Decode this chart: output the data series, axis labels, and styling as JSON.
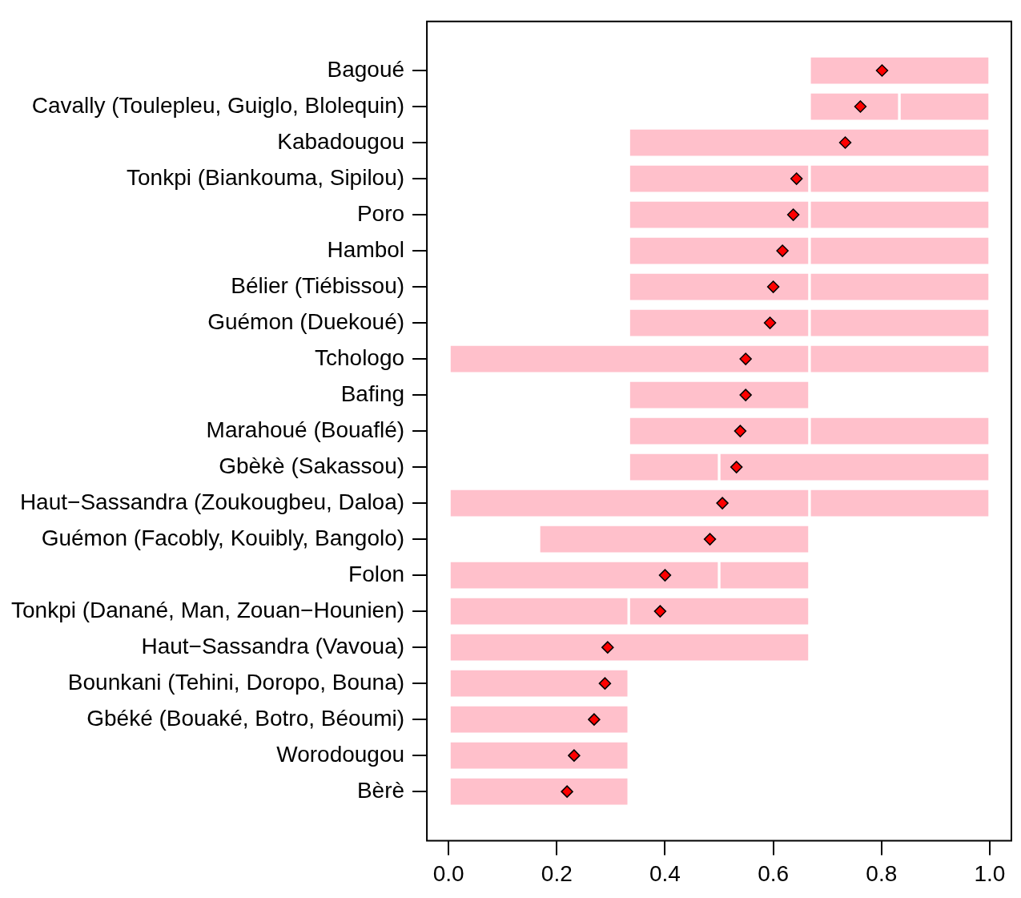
{
  "chart_data": {
    "type": "bar",
    "orientation": "horizontal",
    "categories": [
      "Bagoué",
      "Cavally (Toulepleu, Guiglo, Blolequin)",
      "Kabadougou",
      "Tonkpi (Biankouma, Sipilou)",
      "Poro",
      "Hambol",
      "Bélier (Tiébissou)",
      "Guémon (Duekoué)",
      "Tchologo",
      "Bafing",
      "Marahoué (Bouaflé)",
      "Gbèkè (Sakassou)",
      "Haut−Sassandra (Zoukougbeu, Daloa)",
      "Guémon (Facobly, Kouibly, Bangolo)",
      "Folon",
      "Tonkpi (Danané, Man, Zouan−Hounien)",
      "Haut−Sassandra (Vavoua)",
      "Bounkani (Tehini, Doropo, Bouna)",
      "Gbéké (Bouaké, Botro, Béoumi)",
      "Worodougou",
      "Bèrè"
    ],
    "series": [
      {
        "type": "bar",
        "color": "#ffc0cb",
        "base": [
          0.667,
          0.667,
          0.333,
          0.333,
          0.333,
          0.333,
          0.333,
          0.333,
          0,
          0.333,
          0.333,
          0.333,
          0,
          0.167,
          0,
          0,
          0,
          0,
          0,
          0,
          0
        ],
        "values": [
          0.333,
          0.166,
          0.667,
          0.334,
          0.334,
          0.334,
          0.334,
          0.334,
          0.667,
          0.334,
          0.334,
          0.167,
          0.667,
          0.5,
          0.5,
          0.333,
          0.667,
          0.333,
          0.333,
          0.333,
          0.333
        ]
      },
      {
        "type": "bar",
        "color": "#ffc0cb",
        "base": [
          null,
          0.833,
          null,
          0.667,
          0.667,
          0.667,
          0.667,
          0.667,
          0.667,
          null,
          0.667,
          0.5,
          0.667,
          null,
          0.5,
          0.333,
          null,
          null,
          null,
          null,
          null
        ],
        "values": [
          null,
          0.167,
          null,
          0.333,
          0.333,
          0.333,
          0.333,
          0.333,
          0.333,
          null,
          0.333,
          0.5,
          0.333,
          null,
          0.167,
          0.334,
          null,
          null,
          null,
          null,
          null
        ]
      },
      {
        "type": "scatter",
        "color": "#ff0000",
        "marker": "diamond",
        "values": [
          0.801,
          0.761,
          0.733,
          0.643,
          0.637,
          0.617,
          0.6,
          0.594,
          0.549,
          0.549,
          0.539,
          0.532,
          0.506,
          0.483,
          0.4,
          0.391,
          0.294,
          0.289,
          0.269,
          0.232,
          0.219
        ]
      }
    ],
    "xlim": [
      -0.04,
      1.04
    ],
    "xticks": [
      {
        "value": 0,
        "label": "0.0"
      },
      0.2,
      0.4,
      0.6,
      0.8,
      {
        "value": 1,
        "label": "1.0"
      }
    ]
  }
}
